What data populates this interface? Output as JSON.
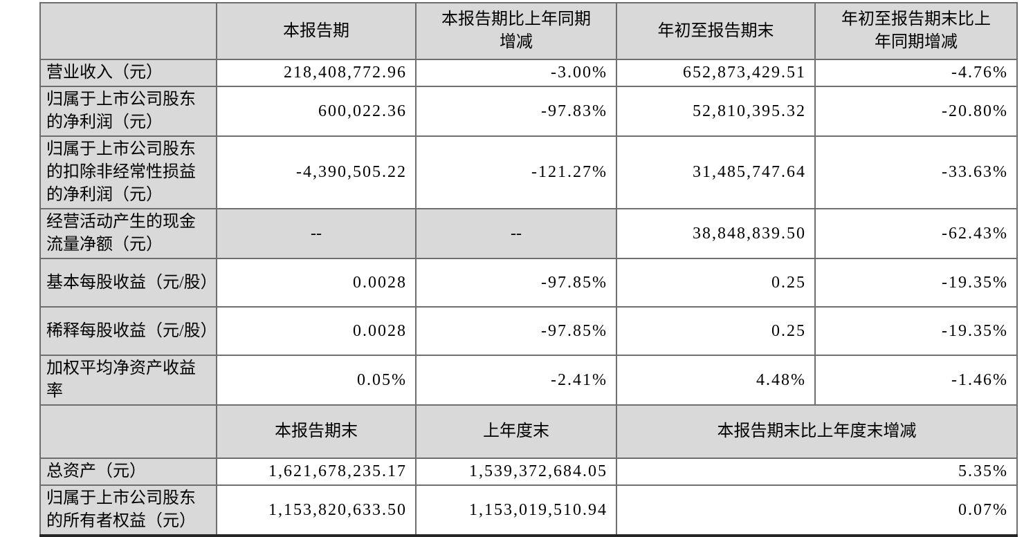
{
  "colors": {
    "header_bg": "#d9d9d9",
    "label_bg": "#d9d9d9",
    "cell_bg": "#ffffff",
    "grid_border": "#6e6e6e",
    "bottom_border": "#262626",
    "text": "#000000"
  },
  "table": {
    "section1": {
      "headers": [
        "",
        "本报告期",
        "本报告期比上年同期增减",
        "年初至报告期末",
        "年初至报告期末比上年同期增减"
      ],
      "rows": [
        {
          "label": "营业收入（元）",
          "values": [
            "218,408,772.96",
            "-3.00%",
            "652,873,429.51",
            "-4.76%"
          ]
        },
        {
          "label": "归属于上市公司股东的净利润（元）",
          "values": [
            "600,022.36",
            "-97.83%",
            "52,810,395.32",
            "-20.80%"
          ]
        },
        {
          "label": "归属于上市公司股东的扣除非经常性损益的净利润（元）",
          "values": [
            "-4,390,505.22",
            "-121.27%",
            "31,485,747.64",
            "-33.63%"
          ]
        },
        {
          "label": "经营活动产生的现金流量净额（元）",
          "values": [
            "--",
            "--",
            "38,848,839.50",
            "-62.43%"
          ]
        },
        {
          "label": "基本每股收益（元/股）",
          "values": [
            "0.0028",
            "-97.85%",
            "0.25",
            "-19.35%"
          ]
        },
        {
          "label": "稀释每股收益（元/股）",
          "values": [
            "0.0028",
            "-97.85%",
            "0.25",
            "-19.35%"
          ]
        },
        {
          "label": "加权平均净资产收益率",
          "values": [
            "0.05%",
            "-2.41%",
            "4.48%",
            "-1.46%"
          ]
        }
      ]
    },
    "section2": {
      "headers": [
        "",
        "本报告期末",
        "上年度末",
        "本报告期末比上年度末增减"
      ],
      "rows": [
        {
          "label": "总资产（元）",
          "values": [
            "1,621,678,235.17",
            "1,539,372,684.05",
            "5.35%"
          ]
        },
        {
          "label": "归属于上市公司股东的所有者权益（元）",
          "values": [
            "1,153,820,633.50",
            "1,153,019,510.94",
            "0.07%"
          ]
        }
      ]
    }
  }
}
